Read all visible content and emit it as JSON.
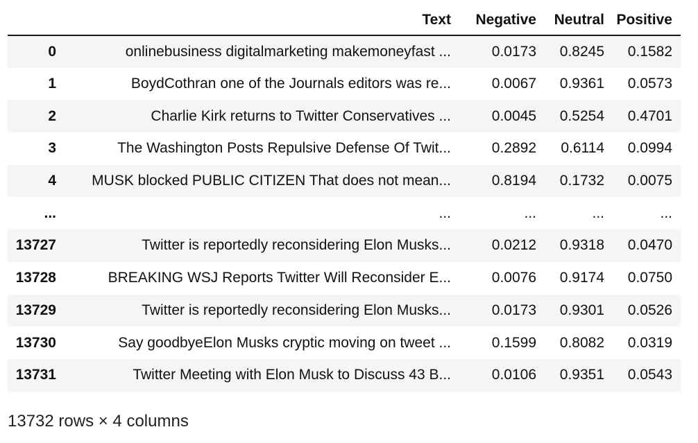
{
  "table": {
    "columns": [
      "",
      "Text",
      "Negative",
      "Neutral",
      "Positive"
    ],
    "rows": [
      {
        "index": "0",
        "text": "onlinebusiness digitalmarketing makemoneyfast ...",
        "negative": "0.0173",
        "neutral": "0.8245",
        "positive": "0.1582"
      },
      {
        "index": "1",
        "text": "BoydCothran one of the Journals editors was re...",
        "negative": "0.0067",
        "neutral": "0.9361",
        "positive": "0.0573"
      },
      {
        "index": "2",
        "text": "Charlie Kirk returns to Twitter Conservatives ...",
        "negative": "0.0045",
        "neutral": "0.5254",
        "positive": "0.4701"
      },
      {
        "index": "3",
        "text": "The Washington Posts Repulsive Defense Of Twit...",
        "negative": "0.2892",
        "neutral": "0.6114",
        "positive": "0.0994"
      },
      {
        "index": "4",
        "text": "MUSK blocked PUBLIC CITIZEN That does not mean...",
        "negative": "0.8194",
        "neutral": "0.1732",
        "positive": "0.0075"
      },
      {
        "index": "...",
        "text": "...",
        "negative": "...",
        "neutral": "...",
        "positive": "..."
      },
      {
        "index": "13727",
        "text": "Twitter is reportedly reconsidering Elon Musks...",
        "negative": "0.0212",
        "neutral": "0.9318",
        "positive": "0.0470"
      },
      {
        "index": "13728",
        "text": "BREAKING WSJ Reports Twitter Will Reconsider E...",
        "negative": "0.0076",
        "neutral": "0.9174",
        "positive": "0.0750"
      },
      {
        "index": "13729",
        "text": "Twitter is reportedly reconsidering Elon Musks...",
        "negative": "0.0173",
        "neutral": "0.9301",
        "positive": "0.0526"
      },
      {
        "index": "13730",
        "text": "Say goodbyeElon Musks cryptic moving on tweet ...",
        "negative": "0.1599",
        "neutral": "0.8082",
        "positive": "0.0319"
      },
      {
        "index": "13731",
        "text": "Twitter Meeting with Elon Musk to Discuss 43 B...",
        "negative": "0.0106",
        "neutral": "0.9351",
        "positive": "0.0543"
      }
    ]
  },
  "footer": "13732 rows × 4 columns",
  "colors": {
    "stripe": "#f5f5f5",
    "header_rule": "#1a1a1a"
  }
}
